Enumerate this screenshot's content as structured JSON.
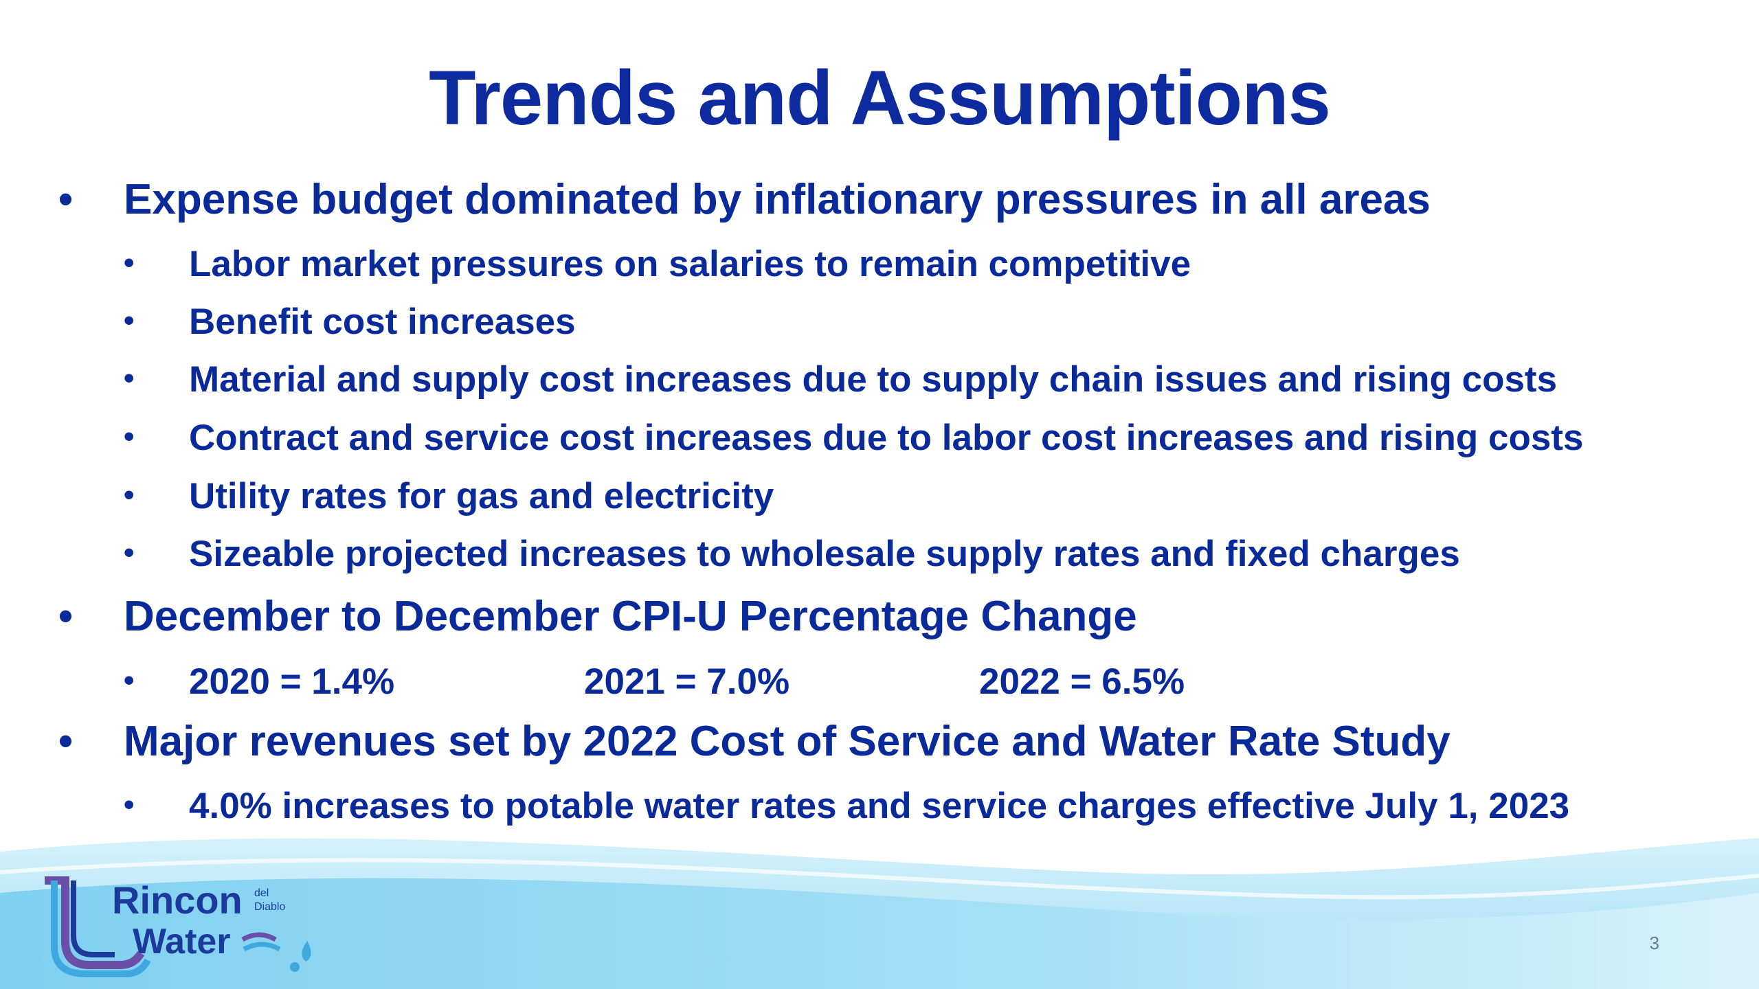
{
  "slide": {
    "title": "Trends and Assumptions",
    "sections": [
      {
        "heading": "Expense budget dominated by inflationary pressures in all areas",
        "items": [
          "Labor market pressures on salaries to remain competitive",
          "Benefit cost increases",
          "Material and supply cost increases due to supply chain issues and rising costs",
          "Contract and service cost increases due to labor cost increases and rising costs",
          "Utility rates for gas and electricity",
          "Sizeable projected increases to wholesale supply rates and fixed charges"
        ]
      },
      {
        "heading": "December to December CPI-U Percentage Change",
        "cpi": [
          "2020 = 1.4%",
          "2021 = 7.0%",
          "2022 = 6.5%"
        ]
      },
      {
        "heading": "Major revenues set by 2022 Cost of Service and Water Rate Study",
        "items": [
          "4.0% increases to potable water rates and service charges effective July 1, 2023"
        ]
      }
    ],
    "page_number": "3"
  },
  "logo": {
    "word1": "Rincon",
    "word2": "Water",
    "small1": "del",
    "small2": "Diablo"
  },
  "colors": {
    "text": "#0d2a9e",
    "wave_light": "#bfe9f8",
    "wave_mid": "#7fd3f2",
    "logo_blue": "#1c3a9c"
  }
}
